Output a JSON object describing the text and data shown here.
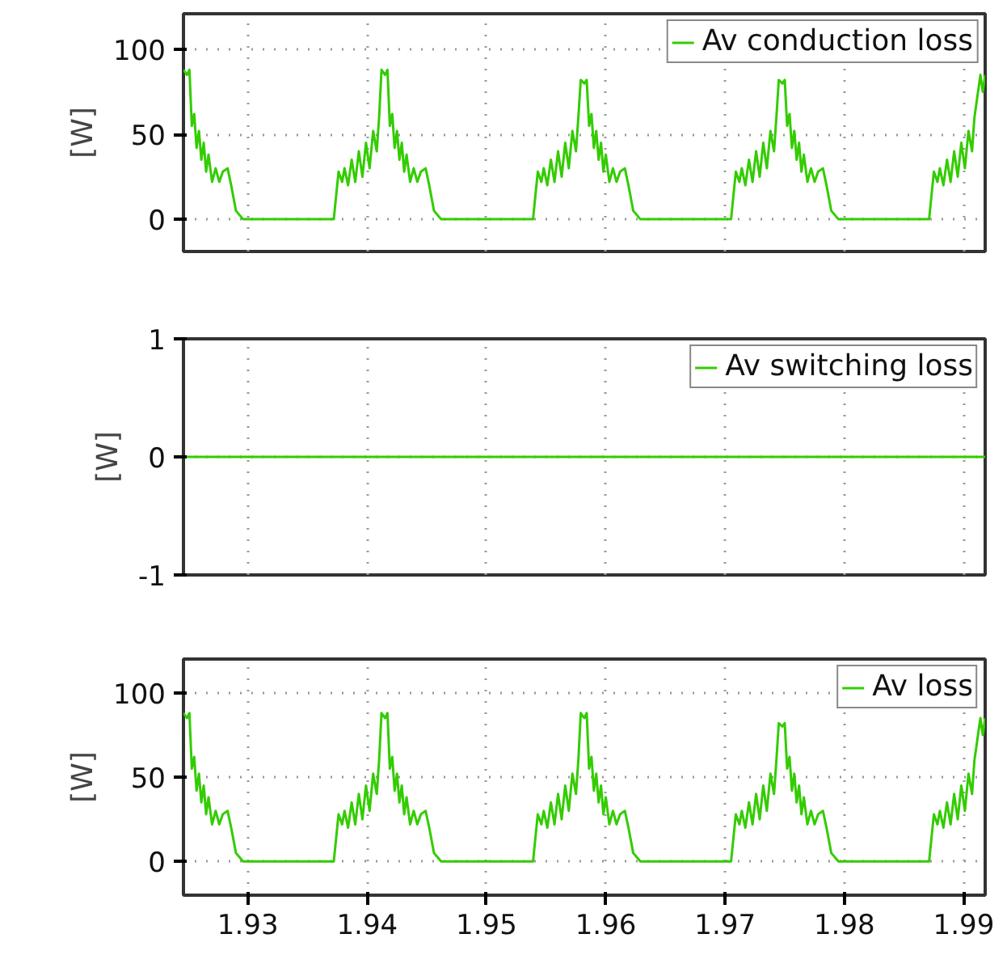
{
  "chart_data": [
    {
      "type": "line",
      "ylabel": "[W]",
      "xlim": [
        1.9246,
        1.9918
      ],
      "xticks": [
        1.93,
        1.94,
        1.95,
        1.96,
        1.97,
        1.98,
        1.99
      ],
      "ylim": [
        -19,
        121
      ],
      "yticks": [
        0,
        50,
        100
      ],
      "grid": true,
      "legend": "top right",
      "tick_labels": "y",
      "x": [
        1.9246,
        1.9249,
        1.9251,
        1.9253,
        1.9255,
        1.9257,
        1.9259,
        1.9261,
        1.9263,
        1.9265,
        1.9267,
        1.927,
        1.9273,
        1.9276,
        1.9279,
        1.9283,
        1.9286,
        1.929,
        1.9296,
        1.9372,
        1.9376,
        1.9379,
        1.9381,
        1.9384,
        1.9387,
        1.939,
        1.9393,
        1.9396,
        1.9399,
        1.9402,
        1.9405,
        1.9408,
        1.941,
        1.9412,
        1.9415,
        1.9417,
        1.9419,
        1.9421,
        1.9423,
        1.9425,
        1.9427,
        1.9429,
        1.9431,
        1.9433,
        1.9436,
        1.9439,
        1.9442,
        1.9445,
        1.9449,
        1.9452,
        1.9456,
        1.9462,
        1.9539,
        1.9543,
        1.9546,
        1.9548,
        1.9551,
        1.9554,
        1.9557,
        1.956,
        1.9563,
        1.9566,
        1.9569,
        1.9572,
        1.9575,
        1.9577,
        1.9579,
        1.9582,
        1.9584,
        1.9586,
        1.9588,
        1.959,
        1.9592,
        1.9594,
        1.9596,
        1.9598,
        1.96,
        1.9603,
        1.9606,
        1.9609,
        1.9612,
        1.9616,
        1.9619,
        1.9623,
        1.9629,
        1.9705,
        1.9709,
        1.9712,
        1.9714,
        1.9717,
        1.972,
        1.9723,
        1.9726,
        1.9729,
        1.9732,
        1.9735,
        1.9738,
        1.9741,
        1.9743,
        1.9745,
        1.9748,
        1.975,
        1.9752,
        1.9754,
        1.9756,
        1.9758,
        1.976,
        1.9762,
        1.9764,
        1.9766,
        1.9769,
        1.9772,
        1.9775,
        1.9778,
        1.9782,
        1.9785,
        1.9789,
        1.9795,
        1.9871,
        1.9875,
        1.9878,
        1.988,
        1.9883,
        1.9886,
        1.9889,
        1.9892,
        1.9895,
        1.9898,
        1.9901,
        1.9904,
        1.9907,
        1.9909,
        1.9911,
        1.9914,
        1.9916,
        1.9918
      ],
      "series": [
        {
          "name": "Av conduction loss",
          "color": "#33cc00",
          "values": [
            88,
            85,
            88,
            55,
            62,
            42,
            52,
            35,
            45,
            28,
            38,
            22,
            30,
            22,
            28,
            30,
            20,
            5,
            0,
            0,
            28,
            22,
            30,
            20,
            35,
            22,
            40,
            25,
            45,
            30,
            52,
            40,
            60,
            88,
            85,
            88,
            55,
            62,
            42,
            52,
            35,
            45,
            28,
            38,
            22,
            30,
            22,
            28,
            30,
            20,
            5,
            0,
            0,
            28,
            22,
            30,
            20,
            35,
            22,
            40,
            25,
            45,
            30,
            52,
            40,
            60,
            82,
            80,
            82,
            55,
            62,
            42,
            52,
            35,
            45,
            28,
            38,
            22,
            30,
            22,
            28,
            30,
            20,
            5,
            0,
            0,
            28,
            22,
            30,
            20,
            35,
            22,
            40,
            25,
            45,
            30,
            52,
            40,
            60,
            82,
            80,
            82,
            55,
            62,
            42,
            52,
            35,
            45,
            28,
            38,
            22,
            30,
            22,
            28,
            30,
            20,
            5,
            0,
            0,
            28,
            22,
            30,
            20,
            35,
            22,
            40,
            25,
            45,
            30,
            52,
            40,
            60,
            70,
            85,
            75,
            85
          ]
        }
      ]
    },
    {
      "type": "line",
      "ylabel": "[W]",
      "xlim": [
        1.9246,
        1.9918
      ],
      "xticks": [
        1.93,
        1.94,
        1.95,
        1.96,
        1.97,
        1.98,
        1.99
      ],
      "ylim": [
        -1,
        1
      ],
      "yticks": [
        -1,
        0,
        1
      ],
      "grid": true,
      "legend": "top right",
      "tick_labels": "y",
      "x": [
        1.9246,
        1.9918
      ],
      "series": [
        {
          "name": "Av switching loss",
          "color": "#33cc00",
          "values": [
            0,
            0
          ]
        }
      ]
    },
    {
      "type": "line",
      "ylabel": "[W]",
      "xlim": [
        1.9246,
        1.9918
      ],
      "xticks": [
        {
          "value": 1.93,
          "label": "1.93"
        },
        {
          "value": 1.94,
          "label": "1.94"
        },
        {
          "value": 1.95,
          "label": "1.95"
        },
        {
          "value": 1.96,
          "label": "1.96"
        },
        {
          "value": 1.97,
          "label": "1.97"
        },
        {
          "value": 1.98,
          "label": "1.98"
        },
        {
          "value": 1.99,
          "label": "1.99"
        }
      ],
      "ylim": [
        -20,
        120
      ],
      "yticks": [
        0,
        50,
        100
      ],
      "grid": true,
      "legend": "top right",
      "x": [
        1.9246,
        1.9249,
        1.9251,
        1.9253,
        1.9255,
        1.9257,
        1.9259,
        1.9261,
        1.9263,
        1.9265,
        1.9267,
        1.927,
        1.9273,
        1.9276,
        1.9279,
        1.9283,
        1.9286,
        1.929,
        1.9296,
        1.9372,
        1.9376,
        1.9379,
        1.9381,
        1.9384,
        1.9387,
        1.939,
        1.9393,
        1.9396,
        1.9399,
        1.9402,
        1.9405,
        1.9408,
        1.941,
        1.9412,
        1.9415,
        1.9417,
        1.9419,
        1.9421,
        1.9423,
        1.9425,
        1.9427,
        1.9429,
        1.9431,
        1.9433,
        1.9436,
        1.9439,
        1.9442,
        1.9445,
        1.9449,
        1.9452,
        1.9456,
        1.9462,
        1.9539,
        1.9543,
        1.9546,
        1.9548,
        1.9551,
        1.9554,
        1.9557,
        1.956,
        1.9563,
        1.9566,
        1.9569,
        1.9572,
        1.9575,
        1.9577,
        1.9579,
        1.9582,
        1.9584,
        1.9586,
        1.9588,
        1.959,
        1.9592,
        1.9594,
        1.9596,
        1.9598,
        1.96,
        1.9603,
        1.9606,
        1.9609,
        1.9612,
        1.9616,
        1.9619,
        1.9623,
        1.9629,
        1.9705,
        1.9709,
        1.9712,
        1.9714,
        1.9717,
        1.972,
        1.9723,
        1.9726,
        1.9729,
        1.9732,
        1.9735,
        1.9738,
        1.9741,
        1.9743,
        1.9745,
        1.9748,
        1.975,
        1.9752,
        1.9754,
        1.9756,
        1.9758,
        1.976,
        1.9762,
        1.9764,
        1.9766,
        1.9769,
        1.9772,
        1.9775,
        1.9778,
        1.9782,
        1.9785,
        1.9789,
        1.9795,
        1.9871,
        1.9875,
        1.9878,
        1.988,
        1.9883,
        1.9886,
        1.9889,
        1.9892,
        1.9895,
        1.9898,
        1.9901,
        1.9904,
        1.9907,
        1.9909,
        1.9911,
        1.9914,
        1.9916,
        1.9918
      ],
      "series": [
        {
          "name": "Av loss",
          "color": "#33cc00",
          "values": [
            88,
            85,
            88,
            55,
            62,
            42,
            52,
            35,
            45,
            28,
            38,
            22,
            30,
            22,
            28,
            30,
            20,
            5,
            0,
            0,
            28,
            22,
            30,
            20,
            35,
            22,
            40,
            25,
            45,
            30,
            52,
            40,
            60,
            88,
            85,
            88,
            55,
            62,
            42,
            52,
            35,
            45,
            28,
            38,
            22,
            30,
            22,
            28,
            30,
            20,
            5,
            0,
            0,
            28,
            22,
            30,
            20,
            35,
            22,
            40,
            25,
            45,
            30,
            52,
            40,
            60,
            88,
            85,
            88,
            55,
            62,
            42,
            52,
            35,
            45,
            28,
            38,
            22,
            30,
            22,
            28,
            30,
            20,
            5,
            0,
            0,
            28,
            22,
            30,
            20,
            35,
            22,
            40,
            25,
            45,
            30,
            52,
            40,
            60,
            82,
            80,
            82,
            55,
            62,
            42,
            52,
            35,
            45,
            28,
            38,
            22,
            30,
            22,
            28,
            30,
            20,
            5,
            0,
            0,
            28,
            22,
            30,
            20,
            35,
            22,
            40,
            25,
            45,
            30,
            52,
            40,
            60,
            70,
            85,
            75,
            85
          ]
        }
      ]
    }
  ]
}
